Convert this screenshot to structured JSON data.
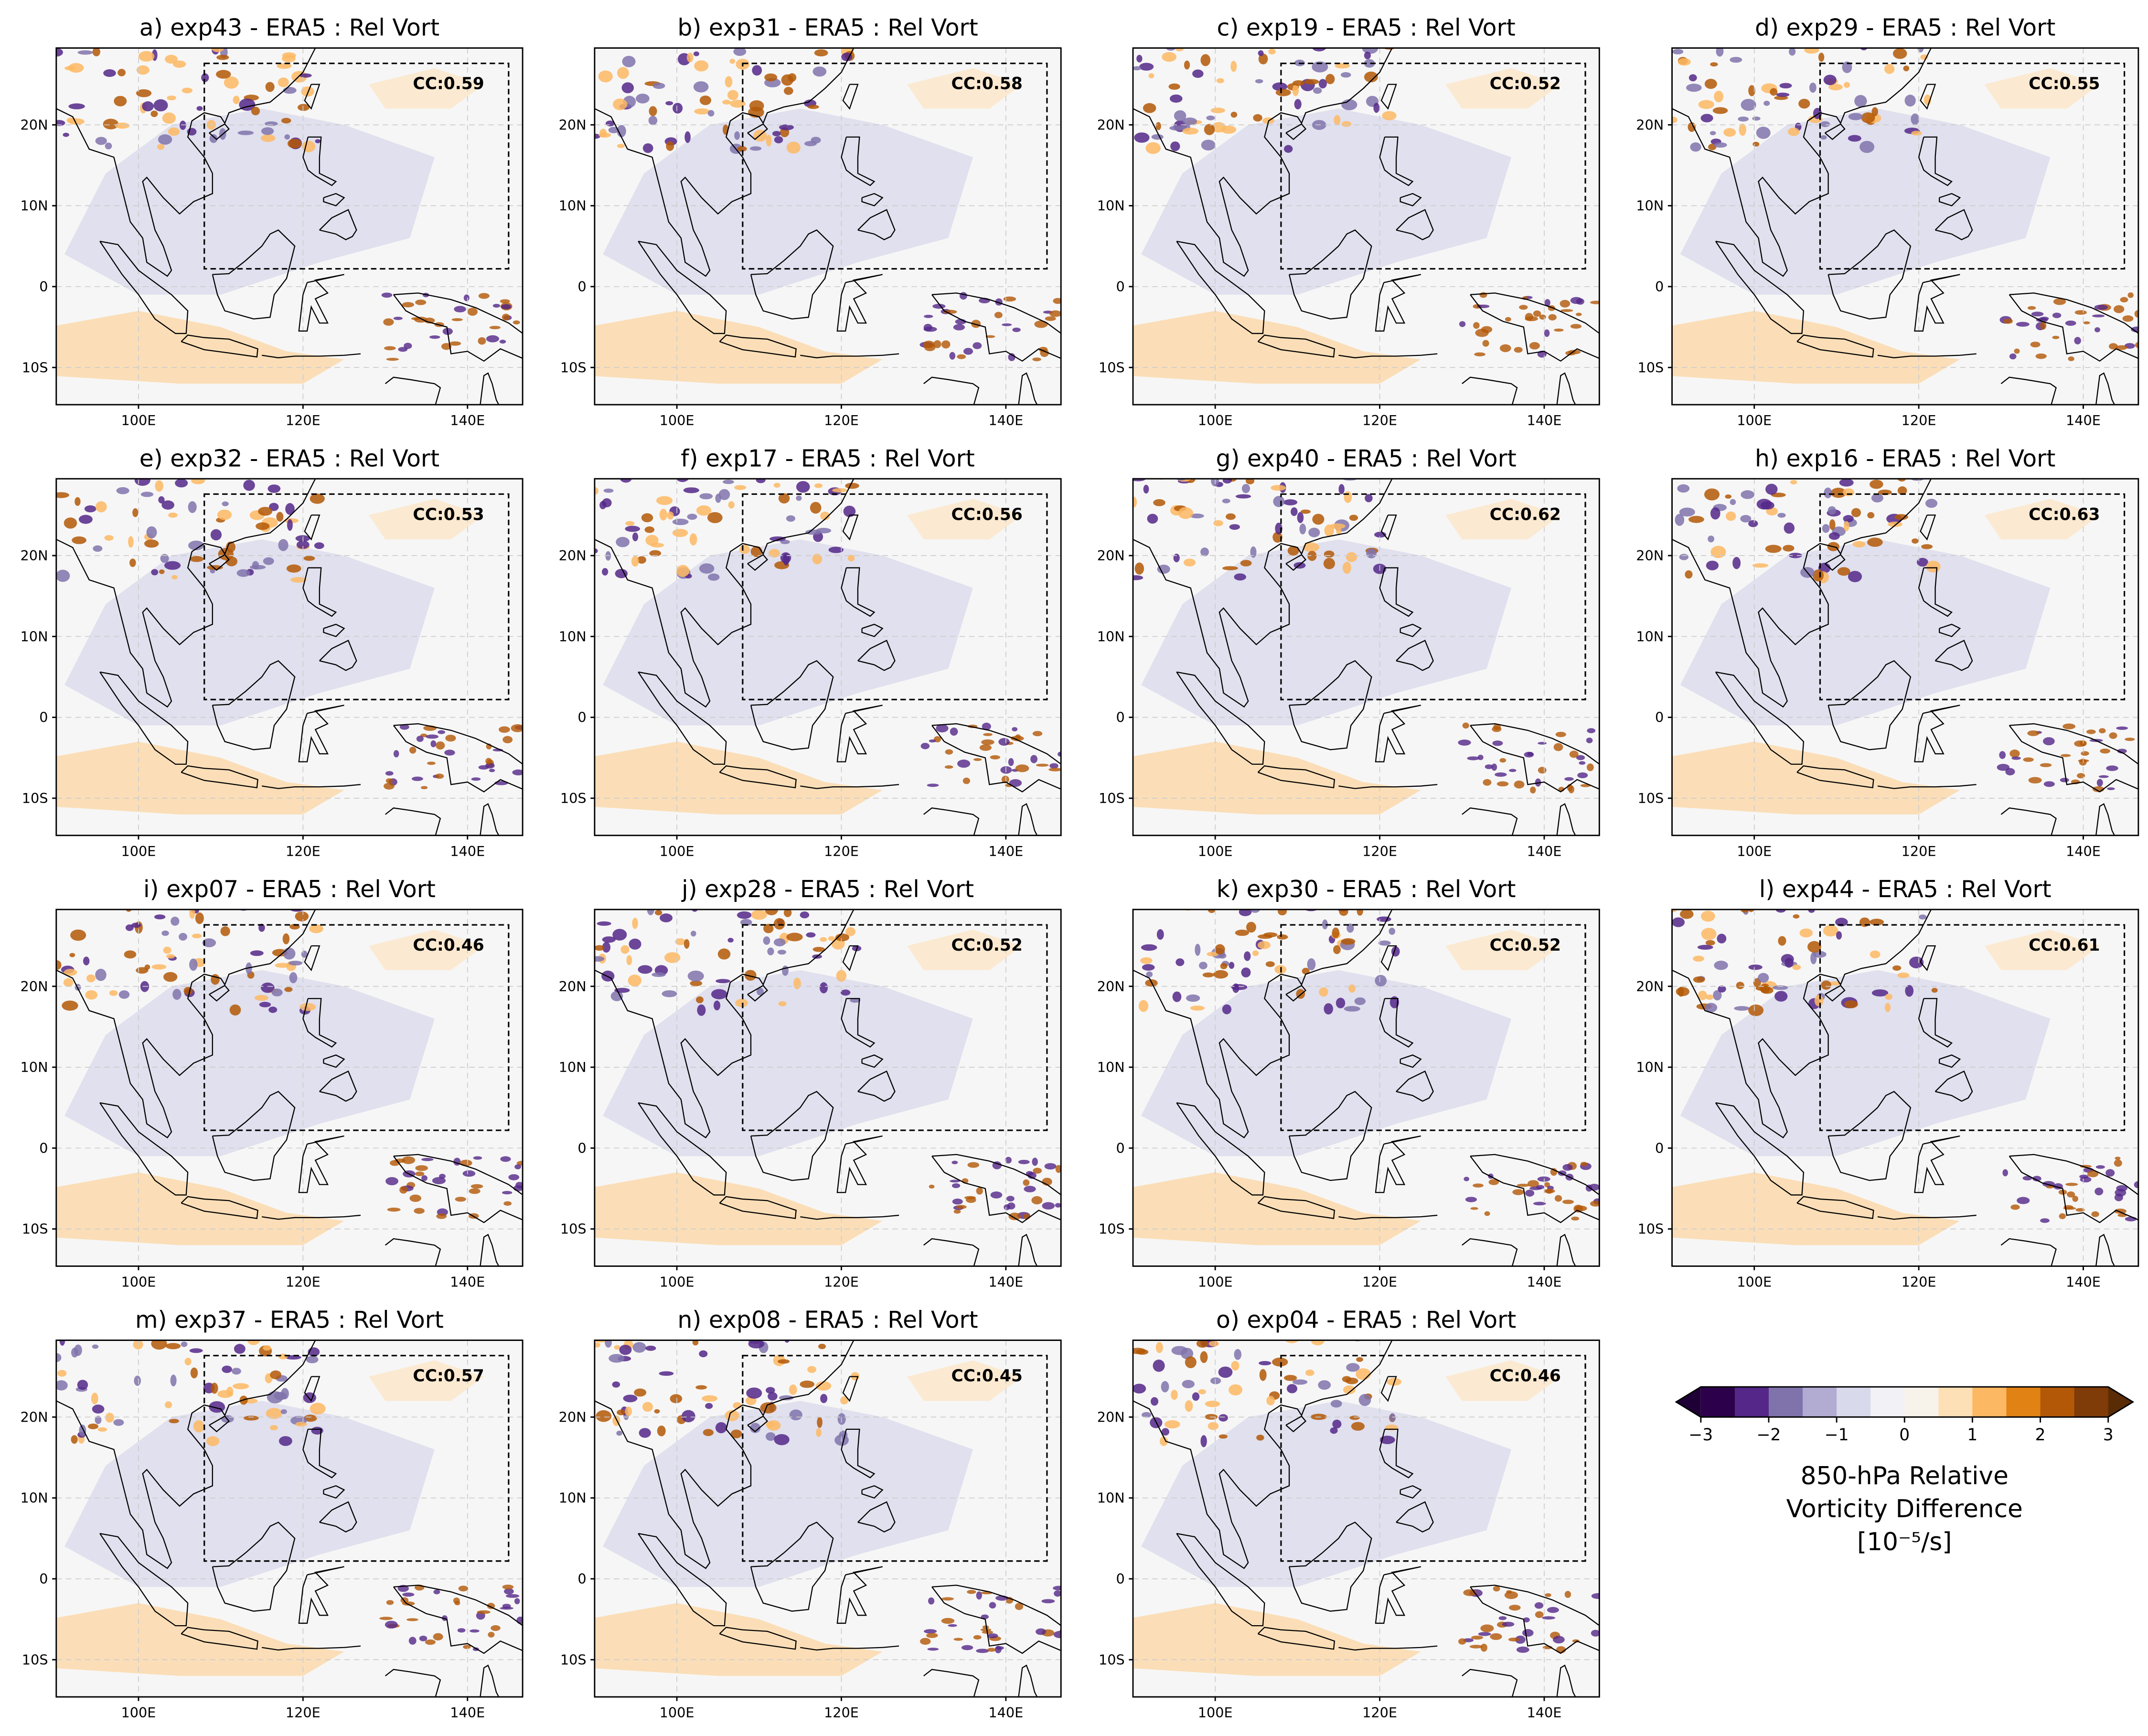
{
  "panels": [
    {
      "title": "a) exp43 - ERA5 : Rel Vort",
      "cc_label": "CC:0.59"
    },
    {
      "title": "b) exp31 - ERA5 : Rel Vort",
      "cc_label": "CC:0.58"
    },
    {
      "title": "c) exp19 - ERA5 : Rel Vort",
      "cc_label": "CC:0.52"
    },
    {
      "title": "d) exp29 - ERA5 : Rel Vort",
      "cc_label": "CC:0.55"
    },
    {
      "title": "e) exp32 - ERA5 : Rel Vort",
      "cc_label": "CC:0.53"
    },
    {
      "title": "f) exp17 - ERA5 : Rel Vort",
      "cc_label": "CC:0.56"
    },
    {
      "title": "g) exp40 - ERA5 : Rel Vort",
      "cc_label": "CC:0.62"
    },
    {
      "title": "h) exp16 - ERA5 : Rel Vort",
      "cc_label": "CC:0.63"
    },
    {
      "title": "i) exp07 - ERA5 : Rel Vort",
      "cc_label": "CC:0.46"
    },
    {
      "title": "j) exp28 - ERA5 : Rel Vort",
      "cc_label": "CC:0.52"
    },
    {
      "title": "k) exp30 - ERA5 : Rel Vort",
      "cc_label": "CC:0.52"
    },
    {
      "title": "l) exp44 - ERA5 : Rel Vort",
      "cc_label": "CC:0.61"
    },
    {
      "title": "m) exp37 - ERA5 : Rel Vort",
      "cc_label": "CC:0.57"
    },
    {
      "title": "n) exp08 - ERA5 : Rel Vort",
      "cc_label": "CC:0.45"
    },
    {
      "title": "o) exp04 - ERA5 : Rel Vort",
      "cc_label": "CC:0.46"
    }
  ],
  "axes": {
    "xlim": [
      90,
      146.7
    ],
    "ylim": [
      -14.6,
      29.5
    ],
    "xticks": [
      {
        "value": 100,
        "label": "100E"
      },
      {
        "value": 120,
        "label": "120E"
      },
      {
        "value": 140,
        "label": "140E"
      }
    ],
    "yticks": [
      {
        "value": 20,
        "label": "20N"
      },
      {
        "value": 10,
        "label": "10N"
      },
      0,
      {
        "value": -10,
        "label": "10S"
      }
    ],
    "grid": true
  },
  "colorbar": {
    "label": [
      "850-hPa Relative",
      "Vorticity Difference",
      "[10⁻⁵/s]"
    ],
    "levels": [
      -3,
      -2.5,
      -2,
      -1.5,
      -1,
      -0.5,
      0,
      0.5,
      1,
      1.5,
      2,
      2.5,
      3
    ],
    "colors": [
      "#2d004b",
      "#542788",
      "#8073ac",
      "#b2abd2",
      "#d8daeb",
      "#f2f1f6",
      "#f7f2ea",
      "#fee0b6",
      "#fdb863",
      "#e08214",
      "#b35806",
      "#7f3b08"
    ],
    "extend_colors": [
      "#1f0036",
      "#5a2c06"
    ],
    "ticks": [
      {
        "value": -3,
        "label": "−3"
      },
      {
        "value": -2,
        "label": "−2"
      },
      {
        "value": -1,
        "label": "−1"
      },
      0,
      1,
      2,
      3
    ]
  }
}
